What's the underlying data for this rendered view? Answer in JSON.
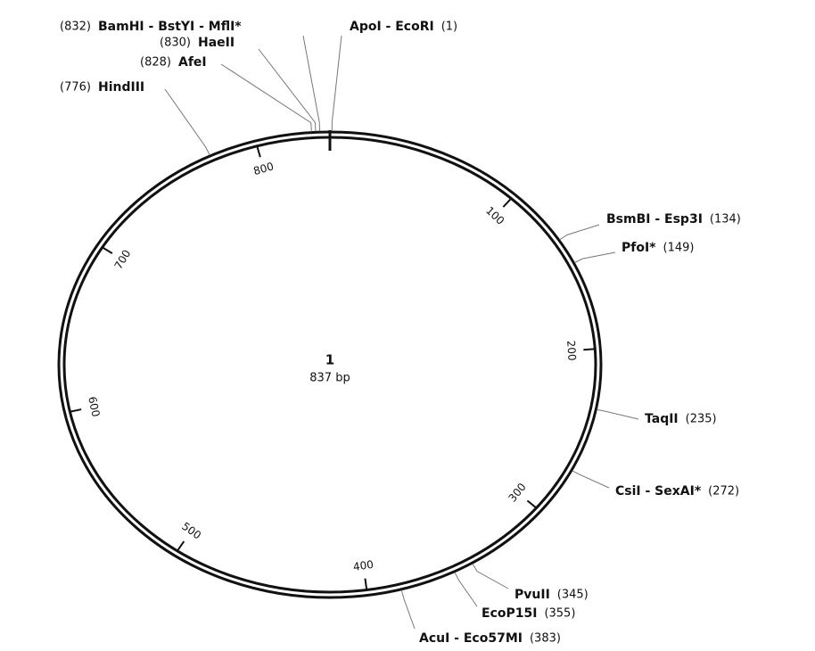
{
  "map": {
    "title": "1",
    "length": {
      "value": 837,
      "label": "837 bp"
    },
    "ticks": [
      100,
      200,
      300,
      400,
      500,
      600,
      700,
      800
    ],
    "sites": [
      {
        "name": "ApoI - EcoRI",
        "position": {
          "value": 1,
          "label": "(1)"
        }
      },
      {
        "name": "BamHI - BstYI - MflI*",
        "position": {
          "value": 832,
          "label": "(832)"
        }
      },
      {
        "name": "HaeII",
        "position": {
          "value": 830,
          "label": "(830)"
        }
      },
      {
        "name": "AfeI",
        "position": {
          "value": 828,
          "label": "(828)"
        }
      },
      {
        "name": "HindIII",
        "position": {
          "value": 776,
          "label": "(776)"
        }
      },
      {
        "name": "BsmBI - Esp3I",
        "position": {
          "value": 134,
          "label": "(134)"
        }
      },
      {
        "name": "PfoI*",
        "position": {
          "value": 149,
          "label": "(149)"
        }
      },
      {
        "name": "TaqII",
        "position": {
          "value": 235,
          "label": "(235)"
        }
      },
      {
        "name": "CsiI - SexAI*",
        "position": {
          "value": 272,
          "label": "(272)"
        }
      },
      {
        "name": "PvuII",
        "position": {
          "value": 345,
          "label": "(345)"
        }
      },
      {
        "name": "EcoP15I",
        "position": {
          "value": 355,
          "label": "(355)"
        }
      },
      {
        "name": "AcuI - Eco57MI",
        "position": {
          "value": 383,
          "label": "(383)"
        }
      }
    ]
  }
}
